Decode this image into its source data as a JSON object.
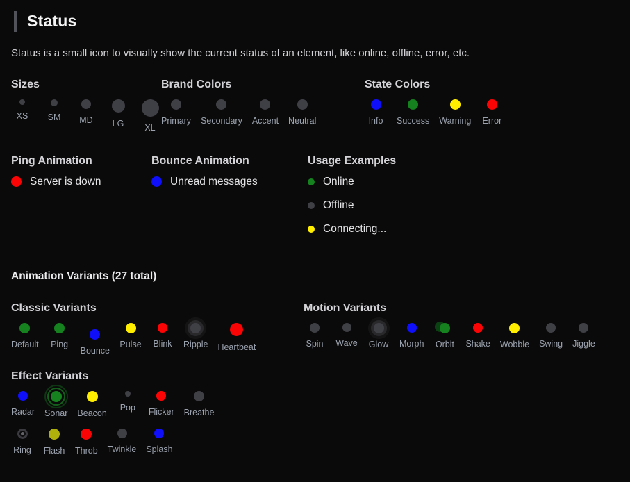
{
  "page": {
    "title": "Status",
    "description": "Status is a small icon to visually show the current status of an element, like online, offline, error, etc."
  },
  "palette": {
    "green": "#15821f",
    "blue": "#0f0ffa",
    "yellow": "#ffee00",
    "red": "#fb0405",
    "gray": "#3f3f46",
    "olive": "#b0b00d",
    "ringdark": "#0d0d0d"
  },
  "sections": {
    "sizes": {
      "heading": "Sizes",
      "items": [
        {
          "label": "XS",
          "color": "gray",
          "size": 8
        },
        {
          "label": "SM",
          "color": "gray",
          "size": 10
        },
        {
          "label": "MD",
          "color": "gray",
          "size": 14
        },
        {
          "label": "LG",
          "color": "gray",
          "size": 19
        },
        {
          "label": "XL",
          "color": "gray",
          "size": 25
        }
      ]
    },
    "brand_colors": {
      "heading": "Brand Colors",
      "items": [
        {
          "label": "Primary",
          "color": "gray",
          "size": 15
        },
        {
          "label": "Secondary",
          "color": "gray",
          "size": 15
        },
        {
          "label": "Accent",
          "color": "gray",
          "size": 15
        },
        {
          "label": "Neutral",
          "color": "gray",
          "size": 15
        }
      ]
    },
    "state_colors": {
      "heading": "State Colors",
      "items": [
        {
          "label": "Info",
          "color": "blue",
          "size": 15
        },
        {
          "label": "Success",
          "color": "green",
          "size": 15
        },
        {
          "label": "Warning",
          "color": "yellow",
          "size": 15
        },
        {
          "label": "Error",
          "color": "red",
          "size": 15
        }
      ]
    },
    "ping_animation": {
      "heading": "Ping Animation",
      "items": [
        {
          "label": "Server is down",
          "color": "red",
          "size": 15
        }
      ]
    },
    "bounce_animation": {
      "heading": "Bounce Animation",
      "items": [
        {
          "label": "Unread messages",
          "color": "blue",
          "size": 15
        }
      ]
    },
    "usage_examples": {
      "heading": "Usage Examples",
      "items": [
        {
          "label": "Online",
          "color": "green",
          "size": 10
        },
        {
          "label": "Offline",
          "color": "gray",
          "size": 10
        },
        {
          "label": "Connecting...",
          "color": "yellow",
          "size": 10
        }
      ]
    },
    "animation_variants": {
      "heading": "Animation Variants (27 total)",
      "groups": [
        {
          "heading": "Classic Variants",
          "items": [
            {
              "label": "Default",
              "color": "green",
              "size": 15
            },
            {
              "label": "Ping",
              "color": "green",
              "size": 15
            },
            {
              "label": "Bounce",
              "color": "blue",
              "size": 15,
              "effect": "bounce"
            },
            {
              "label": "Pulse",
              "color": "yellow",
              "size": 15
            },
            {
              "label": "Blink",
              "color": "red",
              "size": 14
            },
            {
              "label": "Ripple",
              "color": "gray",
              "size": 15,
              "effect": "halo"
            },
            {
              "label": "Heartbeat",
              "color": "red",
              "size": 19
            }
          ]
        },
        {
          "heading": "Motion Variants",
          "items": [
            {
              "label": "Spin",
              "color": "gray",
              "size": 14
            },
            {
              "label": "Wave",
              "color": "gray",
              "size": 13
            },
            {
              "label": "Glow",
              "color": "gray",
              "size": 15,
              "effect": "halo"
            },
            {
              "label": "Morph",
              "color": "blue",
              "size": 14
            },
            {
              "label": "Orbit",
              "color": "green",
              "size": 15,
              "effect": "orbit"
            },
            {
              "label": "Shake",
              "color": "red",
              "size": 14
            },
            {
              "label": "Wobble",
              "color": "yellow",
              "size": 15
            },
            {
              "label": "Swing",
              "color": "gray",
              "size": 14
            },
            {
              "label": "Jiggle",
              "color": "gray",
              "size": 14
            }
          ]
        },
        {
          "heading": "Effect Variants",
          "rows": [
            [
              {
                "label": "Radar",
                "color": "blue",
                "size": 14
              },
              {
                "label": "Sonar",
                "color": "green",
                "size": 16,
                "effect": "sonar"
              },
              {
                "label": "Beacon",
                "color": "yellow",
                "size": 16
              },
              {
                "label": "Pop",
                "color": "gray",
                "size": 8
              },
              {
                "label": "Flicker",
                "color": "red",
                "size": 14
              },
              {
                "label": "Breathe",
                "color": "gray",
                "size": 15
              }
            ],
            [
              {
                "label": "Ring",
                "color": "ringdark",
                "size": 15,
                "effect": "ring"
              },
              {
                "label": "Flash",
                "color": "olive",
                "size": 16
              },
              {
                "label": "Throb",
                "color": "red",
                "size": 16
              },
              {
                "label": "Twinkle",
                "color": "gray",
                "size": 14
              },
              {
                "label": "Splash",
                "color": "blue",
                "size": 14
              }
            ]
          ]
        }
      ]
    }
  }
}
